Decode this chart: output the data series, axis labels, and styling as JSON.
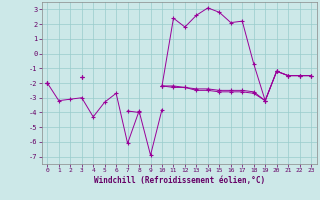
{
  "title": "",
  "xlabel": "Windchill (Refroidissement éolien,°C)",
  "ylabel": "",
  "background_color": "#cce8e8",
  "line_color": "#990099",
  "grid_color": "#99cccc",
  "x": [
    0,
    1,
    2,
    3,
    4,
    5,
    6,
    7,
    8,
    9,
    10,
    11,
    12,
    13,
    14,
    15,
    16,
    17,
    18,
    19,
    20,
    21,
    22,
    23
  ],
  "line1": [
    -2.0,
    -3.2,
    -3.1,
    -3.0,
    -4.3,
    -3.3,
    -2.7,
    -6.1,
    -3.9,
    -6.9,
    -3.8,
    null,
    null,
    null,
    null,
    null,
    null,
    null,
    null,
    null,
    null,
    null,
    null,
    null
  ],
  "line2": [
    -2.0,
    null,
    null,
    -1.6,
    null,
    null,
    null,
    -3.9,
    -4.0,
    null,
    -2.2,
    -2.3,
    -2.3,
    -2.5,
    -2.5,
    -2.6,
    -2.6,
    -2.6,
    -2.7,
    -3.2,
    -1.2,
    -1.5,
    -1.5,
    -1.5
  ],
  "line3": [
    -2.0,
    null,
    null,
    -1.6,
    null,
    null,
    null,
    null,
    null,
    null,
    -2.2,
    2.4,
    1.8,
    2.6,
    3.1,
    2.8,
    2.1,
    2.2,
    -0.7,
    -3.2,
    -1.2,
    -1.5,
    -1.5,
    -1.5
  ],
  "line4": [
    -2.0,
    null,
    null,
    -1.6,
    null,
    null,
    null,
    null,
    null,
    null,
    -2.2,
    -2.2,
    -2.3,
    -2.4,
    -2.4,
    -2.5,
    -2.5,
    -2.5,
    -2.6,
    -3.2,
    -1.2,
    -1.5,
    -1.5,
    -1.5
  ],
  "ylim": [
    -7.5,
    3.5
  ],
  "xlim": [
    -0.5,
    23.5
  ],
  "yticks": [
    -7,
    -6,
    -5,
    -4,
    -3,
    -2,
    -1,
    0,
    1,
    2,
    3
  ],
  "xticks": [
    0,
    1,
    2,
    3,
    4,
    5,
    6,
    7,
    8,
    9,
    10,
    11,
    12,
    13,
    14,
    15,
    16,
    17,
    18,
    19,
    20,
    21,
    22,
    23
  ]
}
